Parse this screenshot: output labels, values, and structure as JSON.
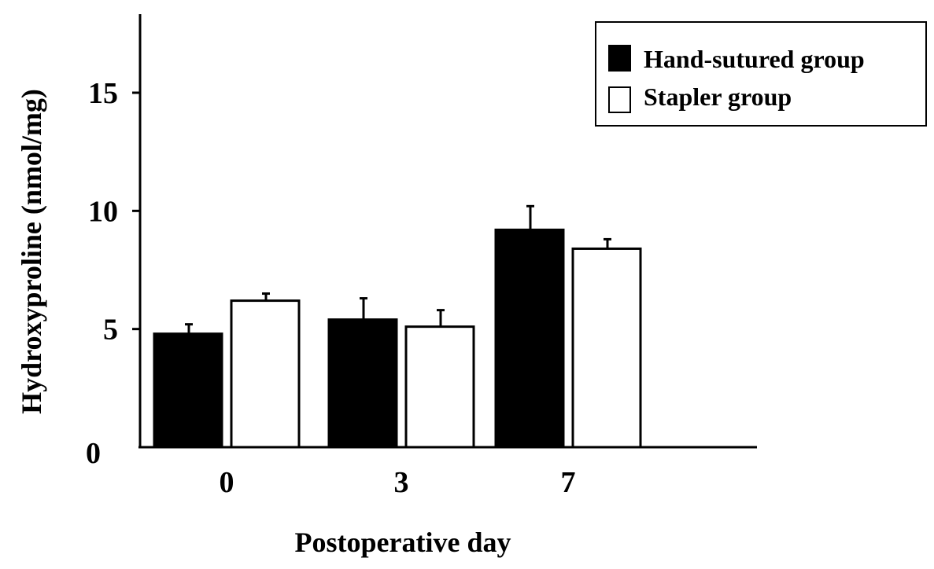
{
  "chart_data": {
    "type": "bar",
    "title": "",
    "xlabel": "Postoperative day",
    "ylabel": "Hydroxyproline (nmol/mg)",
    "categories": [
      "0",
      "3",
      "7"
    ],
    "yticks": [
      "0",
      "5",
      "10",
      "15"
    ],
    "ylim": [
      0,
      18
    ],
    "legend_position": "top-right",
    "series": [
      {
        "name": "Hand-sutured group",
        "fill": "#000000",
        "values": [
          4.8,
          5.4,
          9.2
        ],
        "errors": [
          0.4,
          0.9,
          1.0
        ]
      },
      {
        "name": "Stapler group",
        "fill": "#ffffff",
        "values": [
          6.2,
          5.1,
          8.4
        ],
        "errors": [
          0.3,
          0.7,
          0.4
        ]
      }
    ]
  }
}
